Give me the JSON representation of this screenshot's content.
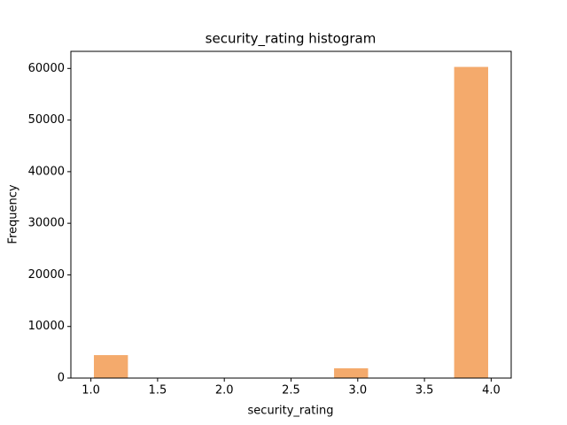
{
  "chart_data": {
    "type": "histogram",
    "title": "security_rating histogram",
    "xlabel": "security_rating",
    "ylabel": "Frequency",
    "bins": [
      1.0,
      1.3,
      1.6,
      1.9,
      2.2,
      2.5,
      2.8,
      3.1,
      3.4,
      3.7,
      4.0
    ],
    "values": [
      4450,
      0,
      0,
      0,
      0,
      0,
      1900,
      0,
      0,
      60300
    ],
    "color": "#f4aa6c",
    "xlim": [
      0.85,
      4.15
    ],
    "ylim": [
      0,
      63315
    ],
    "xticks": [
      {
        "value": 1,
        "label": "1.0"
      },
      1.5,
      {
        "value": 2,
        "label": "2.0"
      },
      2.5,
      {
        "value": 3,
        "label": "3.0"
      },
      3.5,
      {
        "value": 4,
        "label": "4.0"
      }
    ],
    "yticks": [
      0,
      10000,
      20000,
      30000,
      40000,
      50000,
      60000
    ]
  }
}
